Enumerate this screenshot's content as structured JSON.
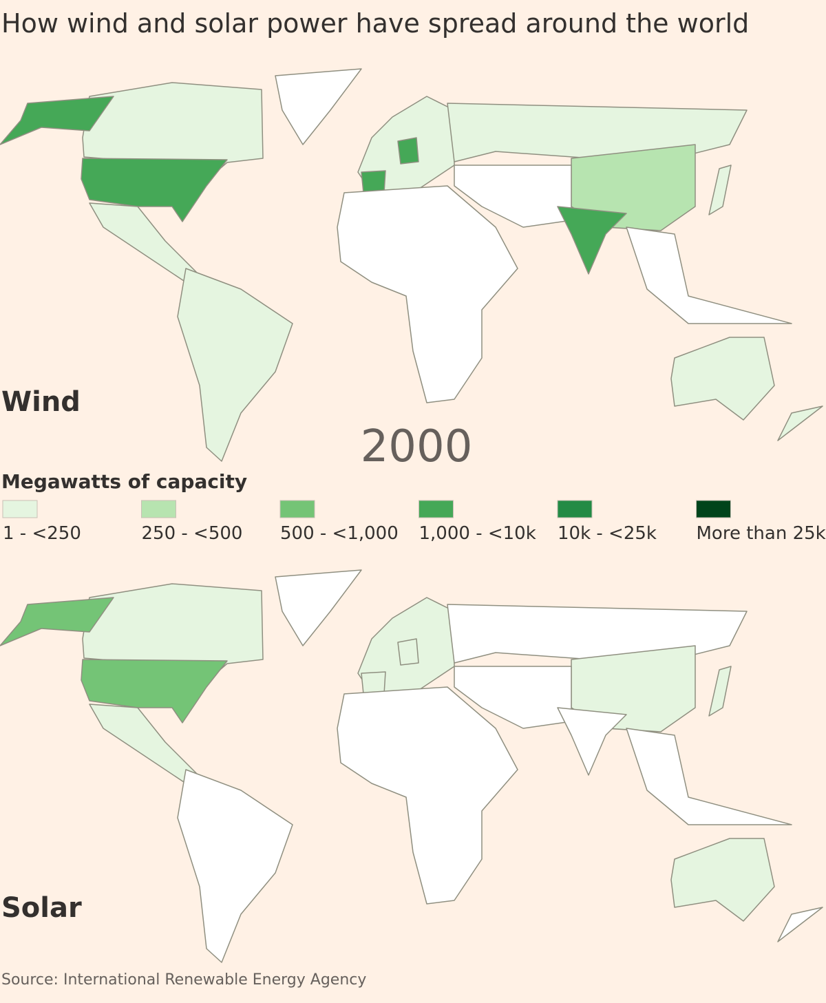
{
  "title": "How wind and solar power have spread around the world",
  "panels": [
    {
      "label": "Wind"
    },
    {
      "label": "Solar"
    }
  ],
  "year": "2000",
  "legend": {
    "title": "Megawatts of capacity",
    "items": [
      {
        "label": "1 - <250",
        "color": "#e5f5e0"
      },
      {
        "label": "250 - <500",
        "color": "#b7e4b0"
      },
      {
        "label": "500 - <1,000",
        "color": "#74c476"
      },
      {
        "label": "1,000 - <10k",
        "color": "#45a857"
      },
      {
        "label": "10k - <25k",
        "color": "#238b45"
      },
      {
        "label": "More than 25k",
        "color": "#00441b"
      }
    ]
  },
  "source": "Source: International Renewable Energy Agency"
}
